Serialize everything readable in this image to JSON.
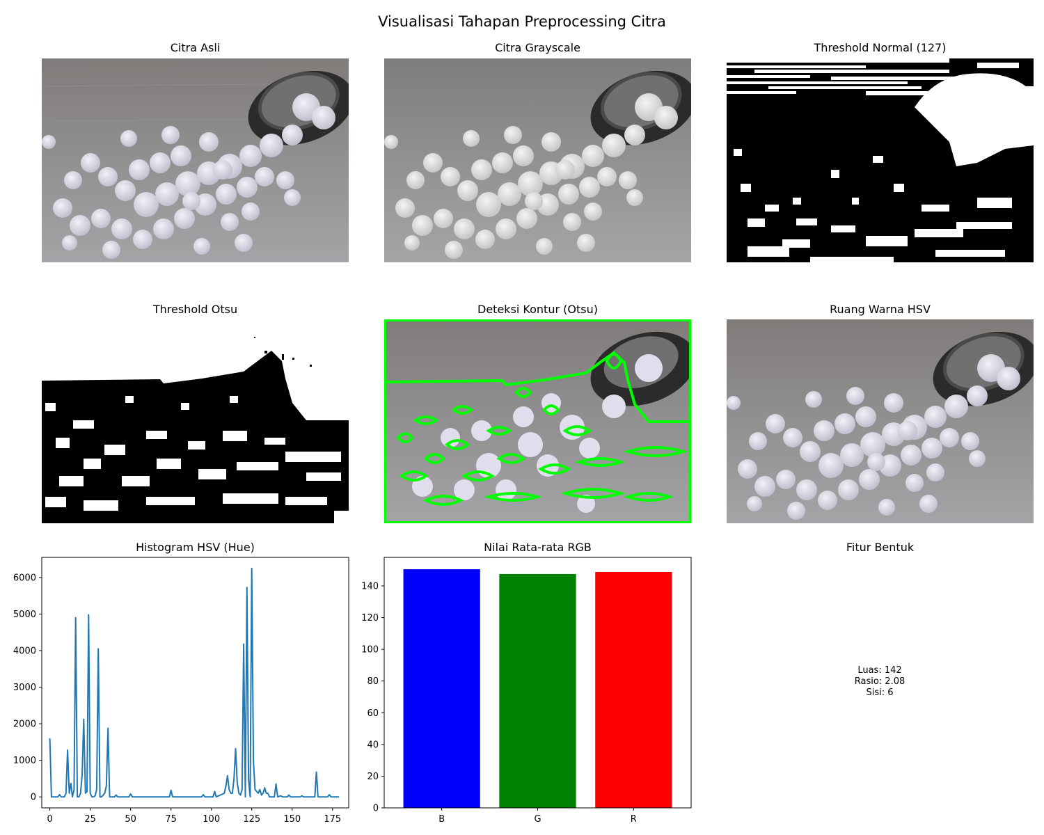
{
  "suptitle": "Visualisasi Tahapan Preprocessing Citra",
  "panels": {
    "original": "Citra Asli",
    "grayscale": "Citra Grayscale",
    "threshold_normal": "Threshold Normal (127)",
    "threshold_otsu": "Threshold Otsu",
    "contour": "Deteksi Kontur (Otsu)",
    "hsv": "Ruang Warna HSV",
    "hist": "Histogram HSV (Hue)",
    "rgb": "Nilai Rata-rata RGB",
    "shape": "Fitur Bentuk"
  },
  "shape_features": {
    "luas": "Luas: 142",
    "rasio": "Rasio: 2.08",
    "sisi": "Sisi: 6"
  },
  "colors": {
    "line": "#1f77b4",
    "bar_b": "#0000ff",
    "bar_g": "#008000",
    "bar_r": "#ff0000",
    "contour": "#00ff00"
  },
  "chart_data": [
    {
      "type": "line",
      "title": "Histogram HSV (Hue)",
      "xlim": [
        -5,
        185
      ],
      "ylim": [
        -300,
        6550
      ],
      "xticks": [
        0,
        25,
        50,
        75,
        100,
        125,
        150,
        175
      ],
      "yticks": [
        0,
        1000,
        2000,
        3000,
        4000,
        5000,
        6000
      ],
      "series": [
        {
          "points": [
            [
              0,
              1600
            ],
            [
              1,
              0
            ],
            [
              5,
              0
            ],
            [
              6,
              60
            ],
            [
              7,
              0
            ],
            [
              9,
              0
            ],
            [
              10,
              100
            ],
            [
              11,
              1280
            ],
            [
              12,
              100
            ],
            [
              13,
              370
            ],
            [
              14,
              0
            ],
            [
              15,
              200
            ],
            [
              16,
              4900
            ],
            [
              17,
              0
            ],
            [
              18,
              0
            ],
            [
              19,
              100
            ],
            [
              20,
              600
            ],
            [
              21,
              2120
            ],
            [
              22,
              100
            ],
            [
              23,
              150
            ],
            [
              24,
              4980
            ],
            [
              25,
              100
            ],
            [
              26,
              0
            ],
            [
              27,
              0
            ],
            [
              28,
              30
            ],
            [
              29,
              200
            ],
            [
              30,
              4050
            ],
            [
              31,
              0
            ],
            [
              32,
              0
            ],
            [
              34,
              100
            ],
            [
              35,
              300
            ],
            [
              36,
              1880
            ],
            [
              37,
              0
            ],
            [
              40,
              0
            ],
            [
              41,
              50
            ],
            [
              42,
              0
            ],
            [
              49,
              0
            ],
            [
              50,
              80
            ],
            [
              51,
              0
            ],
            [
              74,
              0
            ],
            [
              75,
              180
            ],
            [
              76,
              0
            ],
            [
              94,
              0
            ],
            [
              95,
              60
            ],
            [
              96,
              0
            ],
            [
              101,
              0
            ],
            [
              102,
              150
            ],
            [
              103,
              0
            ],
            [
              108,
              100
            ],
            [
              109,
              300
            ],
            [
              110,
              580
            ],
            [
              111,
              200
            ],
            [
              112,
              100
            ],
            [
              113,
              100
            ],
            [
              114,
              500
            ],
            [
              115,
              1320
            ],
            [
              116,
              400
            ],
            [
              117,
              100
            ],
            [
              118,
              50
            ],
            [
              119,
              200
            ],
            [
              120,
              4180
            ],
            [
              121,
              0
            ],
            [
              122,
              5730
            ],
            [
              123,
              480
            ],
            [
              124,
              0
            ],
            [
              125,
              6250
            ],
            [
              126,
              1000
            ],
            [
              127,
              200
            ],
            [
              128,
              150
            ],
            [
              129,
              100
            ],
            [
              130,
              200
            ],
            [
              131,
              50
            ],
            [
              132,
              100
            ],
            [
              133,
              250
            ],
            [
              134,
              100
            ],
            [
              135,
              100
            ],
            [
              136,
              0
            ],
            [
              139,
              0
            ],
            [
              140,
              350
            ],
            [
              141,
              0
            ],
            [
              143,
              30
            ],
            [
              144,
              0
            ],
            [
              147,
              0
            ],
            [
              148,
              50
            ],
            [
              149,
              0
            ],
            [
              155,
              0
            ],
            [
              156,
              30
            ],
            [
              157,
              0
            ],
            [
              164,
              0
            ],
            [
              165,
              680
            ],
            [
              166,
              0
            ],
            [
              172,
              0
            ],
            [
              173,
              60
            ],
            [
              174,
              0
            ],
            [
              179,
              0
            ]
          ]
        }
      ]
    },
    {
      "type": "bar",
      "title": "Nilai Rata-rata RGB",
      "categories": [
        "B",
        "G",
        "R"
      ],
      "values": [
        150.5,
        147.5,
        148.8
      ],
      "ylim": [
        0,
        158
      ],
      "yticks": [
        0,
        20,
        40,
        60,
        80,
        100,
        120,
        140
      ]
    }
  ]
}
